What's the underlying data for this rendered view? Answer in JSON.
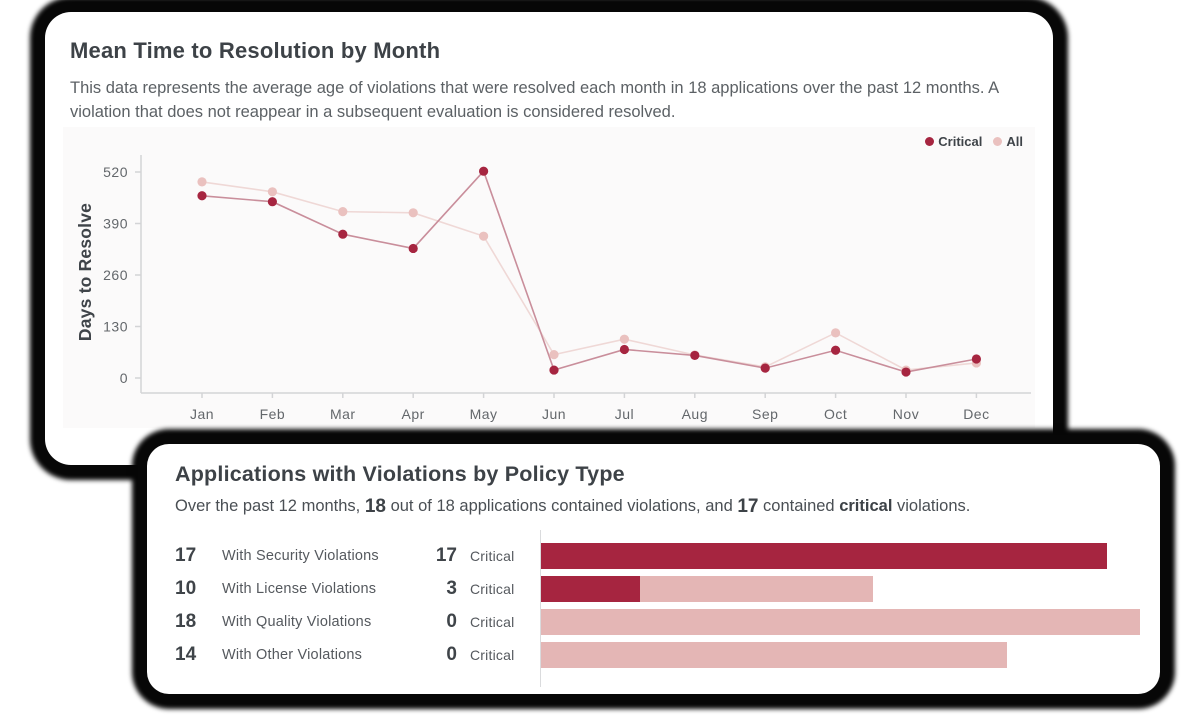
{
  "colors": {
    "critical": "#a62540",
    "all_dot": "#eac1bf",
    "all_bar": "#e4b6b5",
    "critical_line": "#c98e9b",
    "all_line": "#efd8d6",
    "axis": "#d3d4d6"
  },
  "mttr_card": {
    "title": "Mean Time to Resolution by Month",
    "description": "This data represents the average age of violations that were resolved each month in 18 applications over the past 12 months. A violation that does not reappear in a subsequent evaluation is considered resolved.",
    "legend": [
      {
        "label": "Critical"
      },
      {
        "label": "All"
      }
    ]
  },
  "violations_card": {
    "title": "Applications with Violations by Policy Type",
    "description": {
      "prefix": "Over the past 12 months, ",
      "bold_total": "18",
      "mid1": " out of 18 applications contained violations, and ",
      "bold_critical": "17",
      "mid2": " contained ",
      "bold_word": "critical",
      "suffix": " violations."
    },
    "critical_label": "Critical"
  },
  "chart_data": [
    {
      "type": "line",
      "title": "Mean Time to Resolution by Month",
      "xlabel": "",
      "ylabel": "Days to Resolve",
      "x": [
        "Jan",
        "Feb",
        "Mar",
        "Apr",
        "May",
        "Jun",
        "Jul",
        "Aug",
        "Sep",
        "Oct",
        "Nov",
        "Dec"
      ],
      "yticks": [
        0,
        130,
        260,
        390,
        520
      ],
      "ylim": [
        0,
        560
      ],
      "grid": false,
      "legend_position": "top-right",
      "series": [
        {
          "name": "Critical",
          "values": [
            460,
            445,
            363,
            327,
            522,
            20,
            72,
            57,
            25,
            70,
            15,
            48
          ]
        },
        {
          "name": "All",
          "values": [
            495,
            470,
            420,
            417,
            358,
            59,
            98,
            58,
            28,
            114,
            20,
            38
          ]
        }
      ]
    },
    {
      "type": "bar",
      "orientation": "horizontal",
      "title": "Applications with Violations by Policy Type",
      "xmax": 18,
      "rows": [
        {
          "total": 17,
          "label": "With Security Violations",
          "critical": 17
        },
        {
          "total": 10,
          "label": "With License Violations",
          "critical": 3
        },
        {
          "total": 18,
          "label": "With Quality Violations",
          "critical": 0
        },
        {
          "total": 14,
          "label": "With Other Violations",
          "critical": 0
        }
      ]
    }
  ]
}
